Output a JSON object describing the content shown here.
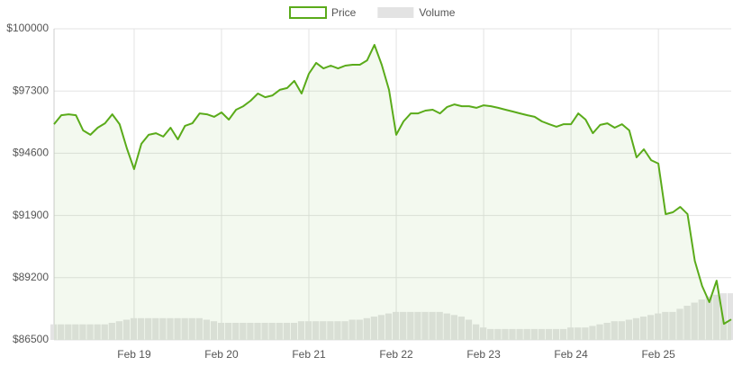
{
  "chart_data": {
    "type": "line",
    "categories": [
      null,
      null,
      null,
      null,
      null,
      null,
      null,
      null,
      null,
      null,
      null,
      "Feb 19",
      null,
      null,
      null,
      null,
      null,
      null,
      null,
      null,
      null,
      null,
      null,
      "Feb 20",
      null,
      null,
      null,
      null,
      null,
      null,
      null,
      null,
      null,
      null,
      null,
      "Feb 21",
      null,
      null,
      null,
      null,
      null,
      null,
      null,
      null,
      null,
      null,
      null,
      "Feb 22",
      null,
      null,
      null,
      null,
      null,
      null,
      null,
      null,
      null,
      null,
      null,
      "Feb 23",
      null,
      null,
      null,
      null,
      null,
      null,
      null,
      null,
      null,
      null,
      null,
      "Feb 24",
      null,
      null,
      null,
      null,
      null,
      null,
      null,
      null,
      null,
      null,
      null,
      "Feb 25",
      null,
      null,
      null,
      null,
      null,
      null,
      null,
      null,
      null,
      null
    ],
    "series": [
      {
        "name": "Price",
        "color": "#5aab1a",
        "values": [
          95860,
          96250,
          96290,
          96250,
          95590,
          95400,
          95710,
          95900,
          96290,
          95860,
          94810,
          93910,
          95010,
          95400,
          95470,
          95320,
          95710,
          95200,
          95790,
          95900,
          96330,
          96290,
          96180,
          96370,
          96060,
          96490,
          96640,
          96880,
          97190,
          97030,
          97110,
          97350,
          97430,
          97740,
          97190,
          98050,
          98520,
          98280,
          98400,
          98280,
          98400,
          98440,
          98440,
          98630,
          99300,
          98440,
          97350,
          95400,
          95980,
          96330,
          96330,
          96450,
          96490,
          96330,
          96610,
          96720,
          96640,
          96640,
          96570,
          96680,
          96640,
          96570,
          96490,
          96410,
          96330,
          96250,
          96180,
          95980,
          95860,
          95750,
          95860,
          95860,
          96330,
          96060,
          95470,
          95830,
          95900,
          95710,
          95860,
          95590,
          94420,
          94770,
          94300,
          94150,
          91960,
          92040,
          92270,
          91960,
          89930,
          88840,
          88140,
          89070,
          87200,
          87390
        ]
      },
      {
        "name": "Volume",
        "color": "#e3e3e3",
        "type": "bar",
        "axis": "y2",
        "values": [
          5,
          5,
          5,
          5,
          5,
          5,
          5,
          5,
          5.5,
          6,
          6.5,
          7,
          7,
          7,
          7,
          7,
          7,
          7,
          7,
          7,
          7,
          6.5,
          6,
          5.5,
          5.5,
          5.5,
          5.5,
          5.5,
          5.5,
          5.5,
          5.5,
          5.5,
          5.5,
          5.5,
          6,
          6,
          6,
          6,
          6,
          6,
          6,
          6.5,
          6.5,
          7,
          7.5,
          8,
          8.5,
          9,
          9,
          9,
          9,
          9,
          9,
          9,
          8.5,
          8,
          7.5,
          6.5,
          5,
          4,
          3.5,
          3.5,
          3.5,
          3.5,
          3.5,
          3.5,
          3.5,
          3.5,
          3.5,
          3.5,
          3.5,
          4,
          4,
          4,
          4.5,
          5,
          5.5,
          6,
          6,
          6.5,
          7,
          7.5,
          8,
          8.5,
          9,
          9,
          10,
          11,
          12,
          13,
          14,
          14.5,
          15,
          15
        ]
      }
    ],
    "ylim": [
      86500,
      100000
    ],
    "yticks": [
      {
        "value": 86500,
        "label": "$86500"
      },
      {
        "value": 89200,
        "label": "$89200"
      },
      {
        "value": 91900,
        "label": "$91900"
      },
      {
        "value": 94600,
        "label": "$94600"
      },
      {
        "value": 97300,
        "label": "$97300"
      },
      {
        "value": 100000,
        "label": "$100000"
      }
    ],
    "y2lim": [
      0,
      100
    ],
    "grid": true,
    "legend": "top"
  }
}
